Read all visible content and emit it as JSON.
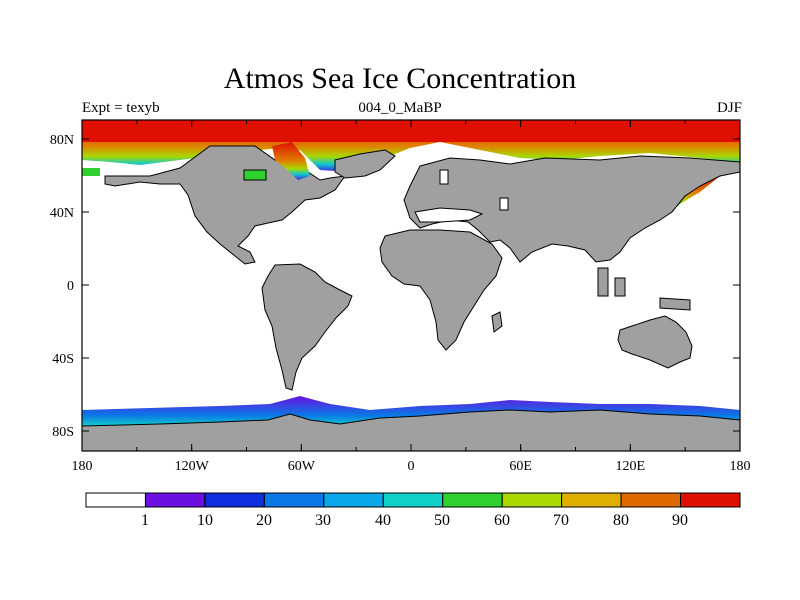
{
  "title": "Atmos Sea Ice Concentration",
  "subtitle_left": "Expt = texyb",
  "subtitle_center": "004_0_MaBP",
  "subtitle_right": "DJF",
  "x_ticks": [
    "180",
    "120W",
    "60W",
    "0",
    "60E",
    "120E",
    "180"
  ],
  "y_ticks": [
    "80N",
    "40N",
    "0",
    "40S",
    "80S"
  ],
  "land_color": "#a0a0a0",
  "colorbar": {
    "colors": [
      "#ffffff",
      "#6a10e0",
      "#1030e0",
      "#0a78e6",
      "#0aa8e8",
      "#10d0c8",
      "#30d030",
      "#a8d800",
      "#e0b000",
      "#e06800",
      "#e01000"
    ],
    "labels": [
      "1",
      "10",
      "20",
      "30",
      "40",
      "50",
      "60",
      "70",
      "80",
      "90"
    ]
  }
}
